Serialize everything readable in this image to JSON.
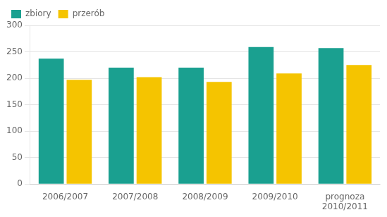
{
  "chart_data": {
    "type": "bar",
    "categories": [
      "2006/2007",
      "2007/2008",
      "2008/2009",
      "2009/2010",
      "prognoza\n2010/2011"
    ],
    "series": [
      {
        "name": "zbiory",
        "color": "#1aA090",
        "values": [
          237,
          220,
          220,
          259,
          257
        ]
      },
      {
        "name": "przerób",
        "color": "#F5C400",
        "values": [
          197,
          202,
          193,
          209,
          225
        ]
      }
    ],
    "ylim": [
      0,
      300
    ],
    "yticks": [
      0,
      50,
      100,
      150,
      200,
      250,
      300
    ],
    "grid": true,
    "legend": "upper left"
  }
}
